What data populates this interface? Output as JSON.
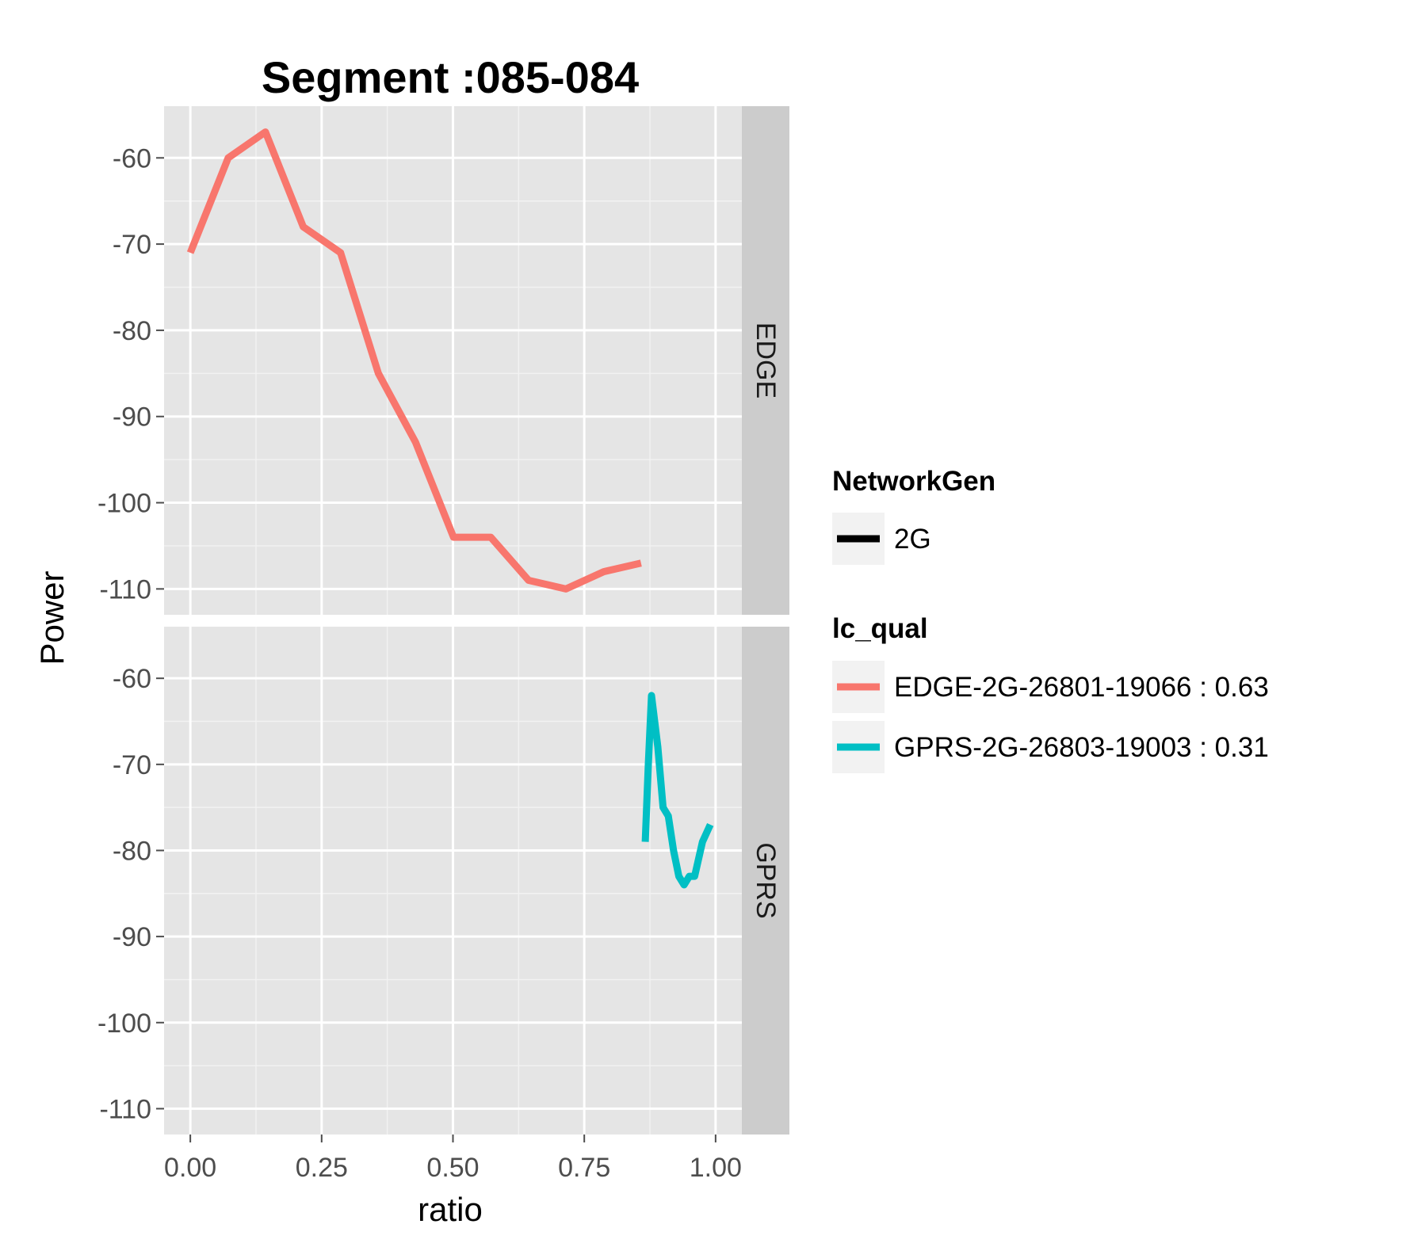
{
  "chart_data": {
    "type": "line",
    "title": "Segment :085-084",
    "xlabel": "ratio",
    "ylabel": "Power",
    "xlim": [
      -0.05,
      1.05
    ],
    "ylim": [
      -113,
      -54
    ],
    "x_ticks": [
      0,
      0.25,
      0.5,
      0.75,
      1
    ],
    "x_tick_labels": [
      "0.00",
      "0.25",
      "0.50",
      "0.75",
      "1.00"
    ],
    "y_ticks": [
      -60,
      -70,
      -80,
      -90,
      -100,
      -110
    ],
    "y_tick_labels": [
      "-60",
      "-70",
      "-80",
      "-90",
      "-100",
      "-110"
    ],
    "grid": true,
    "facets": [
      {
        "label": "EDGE",
        "series": [
          {
            "name": "EDGE-2G-26801-19066 : 0.63",
            "x": [
              0,
              0.072,
              0.143,
              0.215,
              0.286,
              0.358,
              0.429,
              0.501,
              0.572,
              0.644,
              0.715,
              0.787,
              0.858
            ],
            "y": [
              -71,
              -60,
              -57,
              -68,
              -71,
              -85,
              -93,
              -104,
              -104,
              -109,
              -110,
              -108,
              -107
            ]
          }
        ]
      },
      {
        "label": "GPRS",
        "series": [
          {
            "name": "GPRS-2G-26803-19003 : 0.31",
            "x": [
              0.866,
              0.872,
              0.878,
              0.89,
              0.9,
              0.91,
              0.92,
              0.93,
              0.94,
              0.95,
              0.96,
              0.975,
              0.99
            ],
            "y": [
              -79,
              -70,
              -62,
              -68,
              -75,
              -76,
              -80,
              -83,
              -84,
              -83,
              -83,
              -79,
              -77
            ]
          }
        ]
      }
    ],
    "legend": {
      "placement": "right",
      "groups": [
        {
          "title": "NetworkGen",
          "entries": [
            {
              "label": "2G",
              "color": "#000000"
            }
          ]
        },
        {
          "title": "lc_qual",
          "entries": [
            {
              "label": "EDGE-2G-26801-19066 : 0.63",
              "color": "#F8766D"
            },
            {
              "label": "GPRS-2G-26803-19003 : 0.31",
              "color": "#00BFC4"
            }
          ]
        }
      ]
    },
    "colors": {
      "panel_background": "#E5E5E5",
      "grid_major": "#FFFFFF",
      "grid_minor": "#F2F2F2",
      "strip_background": "#CCCCCC",
      "legend_key_background": "#F2F2F2"
    }
  }
}
